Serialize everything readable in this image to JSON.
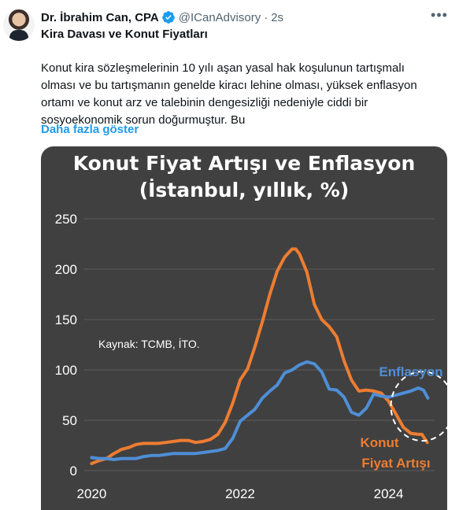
{
  "tweet": {
    "display_name": "Dr. İbrahim Can, CPA",
    "handle": "@ICanAdvisory",
    "separator": "·",
    "time": "2s",
    "title": "Kira Davası ve Konut Fiyatları",
    "body": "Konut kira sözleşmelerinin 10 yılı aşan yasal hak koşulunun tartışmalı olması ve bu tartışmanın genelde kiracı lehine olması, yüksek enflasyon ortamı ve konut arz ve talebinin dengesizliği nedeniyle ciddi bir sosyoekonomik sorun doğurmuştur. Bu",
    "show_more": "Daha fazla göster",
    "verified_color": "#1d9bf0",
    "icons": {
      "more": "more-icon",
      "verified": "verified-badge-icon",
      "avatar": "avatar"
    }
  },
  "chart_data": {
    "type": "line",
    "title_line1": "Konut Fiyat Artışı ve Enflasyon",
    "title_line2": "(İstanbul, yıllık, %)",
    "source": "Kaynak: TCMB, İTO.",
    "ylim": [
      0,
      250
    ],
    "yticks": [
      "0",
      "50",
      "100",
      "150",
      "200",
      "250"
    ],
    "xticks": [
      {
        "label": "2020",
        "x": 2020.0
      },
      {
        "label": "2022",
        "x": 2022.0
      },
      {
        "label": "2024",
        "x": 2024.0
      }
    ],
    "xlim": [
      2019.9,
      2024.62
    ],
    "grid": true,
    "background": "#404040",
    "series": [
      {
        "name": "Konut Fiyat Artışı",
        "label_lines": [
          "Konut",
          "Fiyat Artışı"
        ],
        "color": "#ed7d31",
        "points": [
          [
            2020.0,
            7
          ],
          [
            2020.1,
            10
          ],
          [
            2020.2,
            12
          ],
          [
            2020.3,
            17
          ],
          [
            2020.4,
            21
          ],
          [
            2020.5,
            23
          ],
          [
            2020.6,
            26
          ],
          [
            2020.7,
            27
          ],
          [
            2020.8,
            27
          ],
          [
            2020.9,
            27
          ],
          [
            2021.0,
            28
          ],
          [
            2021.1,
            29
          ],
          [
            2021.2,
            30
          ],
          [
            2021.3,
            30
          ],
          [
            2021.4,
            28
          ],
          [
            2021.5,
            29
          ],
          [
            2021.6,
            31
          ],
          [
            2021.7,
            36
          ],
          [
            2021.8,
            48
          ],
          [
            2021.9,
            67
          ],
          [
            2022.0,
            90
          ],
          [
            2022.1,
            101
          ],
          [
            2022.2,
            123
          ],
          [
            2022.3,
            148
          ],
          [
            2022.4,
            175
          ],
          [
            2022.5,
            198
          ],
          [
            2022.6,
            212
          ],
          [
            2022.7,
            220
          ],
          [
            2022.75,
            220
          ],
          [
            2022.8,
            215
          ],
          [
            2022.9,
            197
          ],
          [
            2023.0,
            165
          ],
          [
            2023.1,
            150
          ],
          [
            2023.2,
            143
          ],
          [
            2023.3,
            133
          ],
          [
            2023.4,
            109
          ],
          [
            2023.5,
            90
          ],
          [
            2023.6,
            79
          ],
          [
            2023.7,
            80
          ],
          [
            2023.8,
            79
          ],
          [
            2023.9,
            77
          ],
          [
            2024.0,
            69
          ],
          [
            2024.1,
            56
          ],
          [
            2024.2,
            43
          ],
          [
            2024.3,
            37
          ],
          [
            2024.4,
            36
          ],
          [
            2024.45,
            36
          ],
          [
            2024.52,
            28
          ]
        ]
      },
      {
        "name": "Enflasyon",
        "label_lines": [
          "Enflasyon"
        ],
        "color": "#4f8ed6",
        "points": [
          [
            2020.0,
            13
          ],
          [
            2020.1,
            12
          ],
          [
            2020.2,
            12
          ],
          [
            2020.3,
            11
          ],
          [
            2020.4,
            12
          ],
          [
            2020.5,
            12
          ],
          [
            2020.6,
            12
          ],
          [
            2020.7,
            14
          ],
          [
            2020.8,
            15
          ],
          [
            2020.9,
            15
          ],
          [
            2021.0,
            16
          ],
          [
            2021.1,
            17
          ],
          [
            2021.2,
            17
          ],
          [
            2021.3,
            17
          ],
          [
            2021.4,
            17
          ],
          [
            2021.5,
            18
          ],
          [
            2021.6,
            19
          ],
          [
            2021.7,
            20
          ],
          [
            2021.8,
            22
          ],
          [
            2021.9,
            32
          ],
          [
            2022.0,
            49
          ],
          [
            2022.1,
            55
          ],
          [
            2022.2,
            61
          ],
          [
            2022.3,
            72
          ],
          [
            2022.4,
            79
          ],
          [
            2022.5,
            85
          ],
          [
            2022.6,
            97
          ],
          [
            2022.7,
            100
          ],
          [
            2022.8,
            105
          ],
          [
            2022.9,
            108
          ],
          [
            2023.0,
            106
          ],
          [
            2023.1,
            98
          ],
          [
            2023.2,
            81
          ],
          [
            2023.3,
            80
          ],
          [
            2023.4,
            73
          ],
          [
            2023.5,
            58
          ],
          [
            2023.6,
            55
          ],
          [
            2023.7,
            62
          ],
          [
            2023.8,
            76
          ],
          [
            2023.9,
            74
          ],
          [
            2024.0,
            73
          ],
          [
            2024.1,
            75
          ],
          [
            2024.2,
            77
          ],
          [
            2024.3,
            79
          ],
          [
            2024.4,
            82
          ],
          [
            2024.47,
            80
          ],
          [
            2024.53,
            72
          ]
        ]
      }
    ]
  }
}
